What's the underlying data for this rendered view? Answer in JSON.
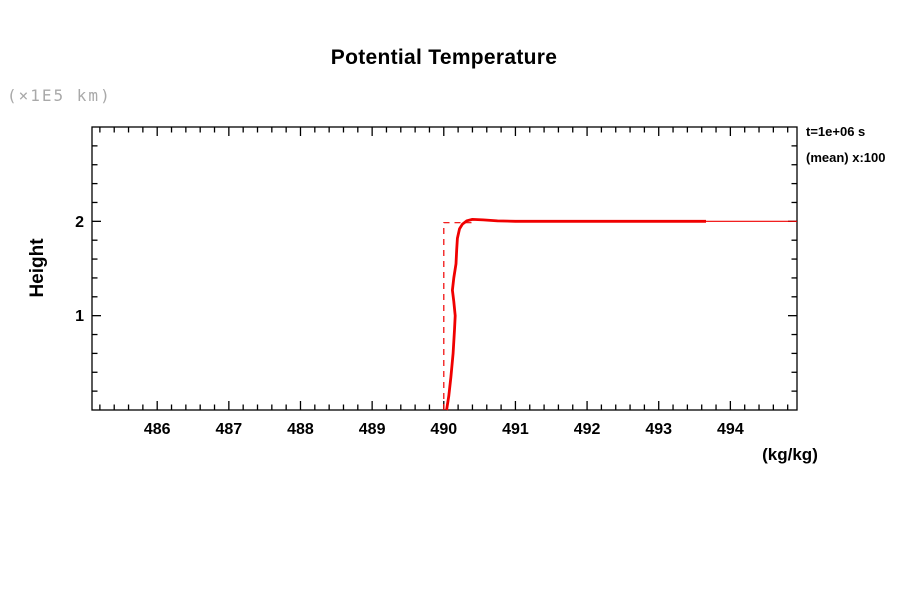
{
  "title": "Potential Temperature",
  "y_axis_unit_label": "(×1E5 km)",
  "y_axis_title": "Height",
  "x_axis_unit_label": "(kg/kg)",
  "annotation": {
    "line1": "t=1e+06 s",
    "line2": "(mean) x:100"
  },
  "colors": {
    "curve": "#f00000",
    "axis": "#000000",
    "unit_label": "#a9a9a9",
    "text": "#000000",
    "background": "#ffffff"
  },
  "chart_data": {
    "type": "line",
    "title": "Potential Temperature",
    "xlabel": "(kg/kg)",
    "ylabel": "Height (×1E5 km)",
    "xlim": [
      485.09,
      494.93
    ],
    "ylim": [
      0,
      3
    ],
    "x_major_ticks": [
      486,
      487,
      488,
      489,
      490,
      491,
      492,
      493,
      494
    ],
    "x_minor_step": 0.2,
    "y_major_ticks": [
      1,
      2
    ],
    "y_minor_step": 0.2,
    "grid": false,
    "legend_position": "outside-top-right",
    "annotations": [
      "t=1e+06 s",
      "(mean) x:100"
    ],
    "series": [
      {
        "name": "initial-profile-dashed",
        "style": "dashed",
        "width": 1.2,
        "points": [
          [
            490.0,
            0.0
          ],
          [
            490.0,
            1.985
          ],
          [
            490.45,
            1.985
          ]
        ]
      },
      {
        "name": "profile-thin",
        "style": "solid",
        "width": 1.2,
        "points": [
          [
            490.6,
            2.01
          ],
          [
            491.0,
            2.0
          ],
          [
            494.93,
            2.0
          ]
        ]
      },
      {
        "name": "mean-profile",
        "style": "solid",
        "width": 2.8,
        "points": [
          [
            490.04,
            0.0
          ],
          [
            490.07,
            0.15
          ],
          [
            490.1,
            0.35
          ],
          [
            490.13,
            0.6
          ],
          [
            490.15,
            0.85
          ],
          [
            490.16,
            1.0
          ],
          [
            490.14,
            1.15
          ],
          [
            490.12,
            1.27
          ],
          [
            490.14,
            1.4
          ],
          [
            490.17,
            1.55
          ],
          [
            490.18,
            1.7
          ],
          [
            490.19,
            1.82
          ],
          [
            490.22,
            1.92
          ],
          [
            490.26,
            1.97
          ],
          [
            490.32,
            2.005
          ],
          [
            490.4,
            2.02
          ],
          [
            490.55,
            2.015
          ],
          [
            490.75,
            2.005
          ],
          [
            491.0,
            2.0
          ],
          [
            493.66,
            2.0
          ]
        ]
      }
    ]
  }
}
